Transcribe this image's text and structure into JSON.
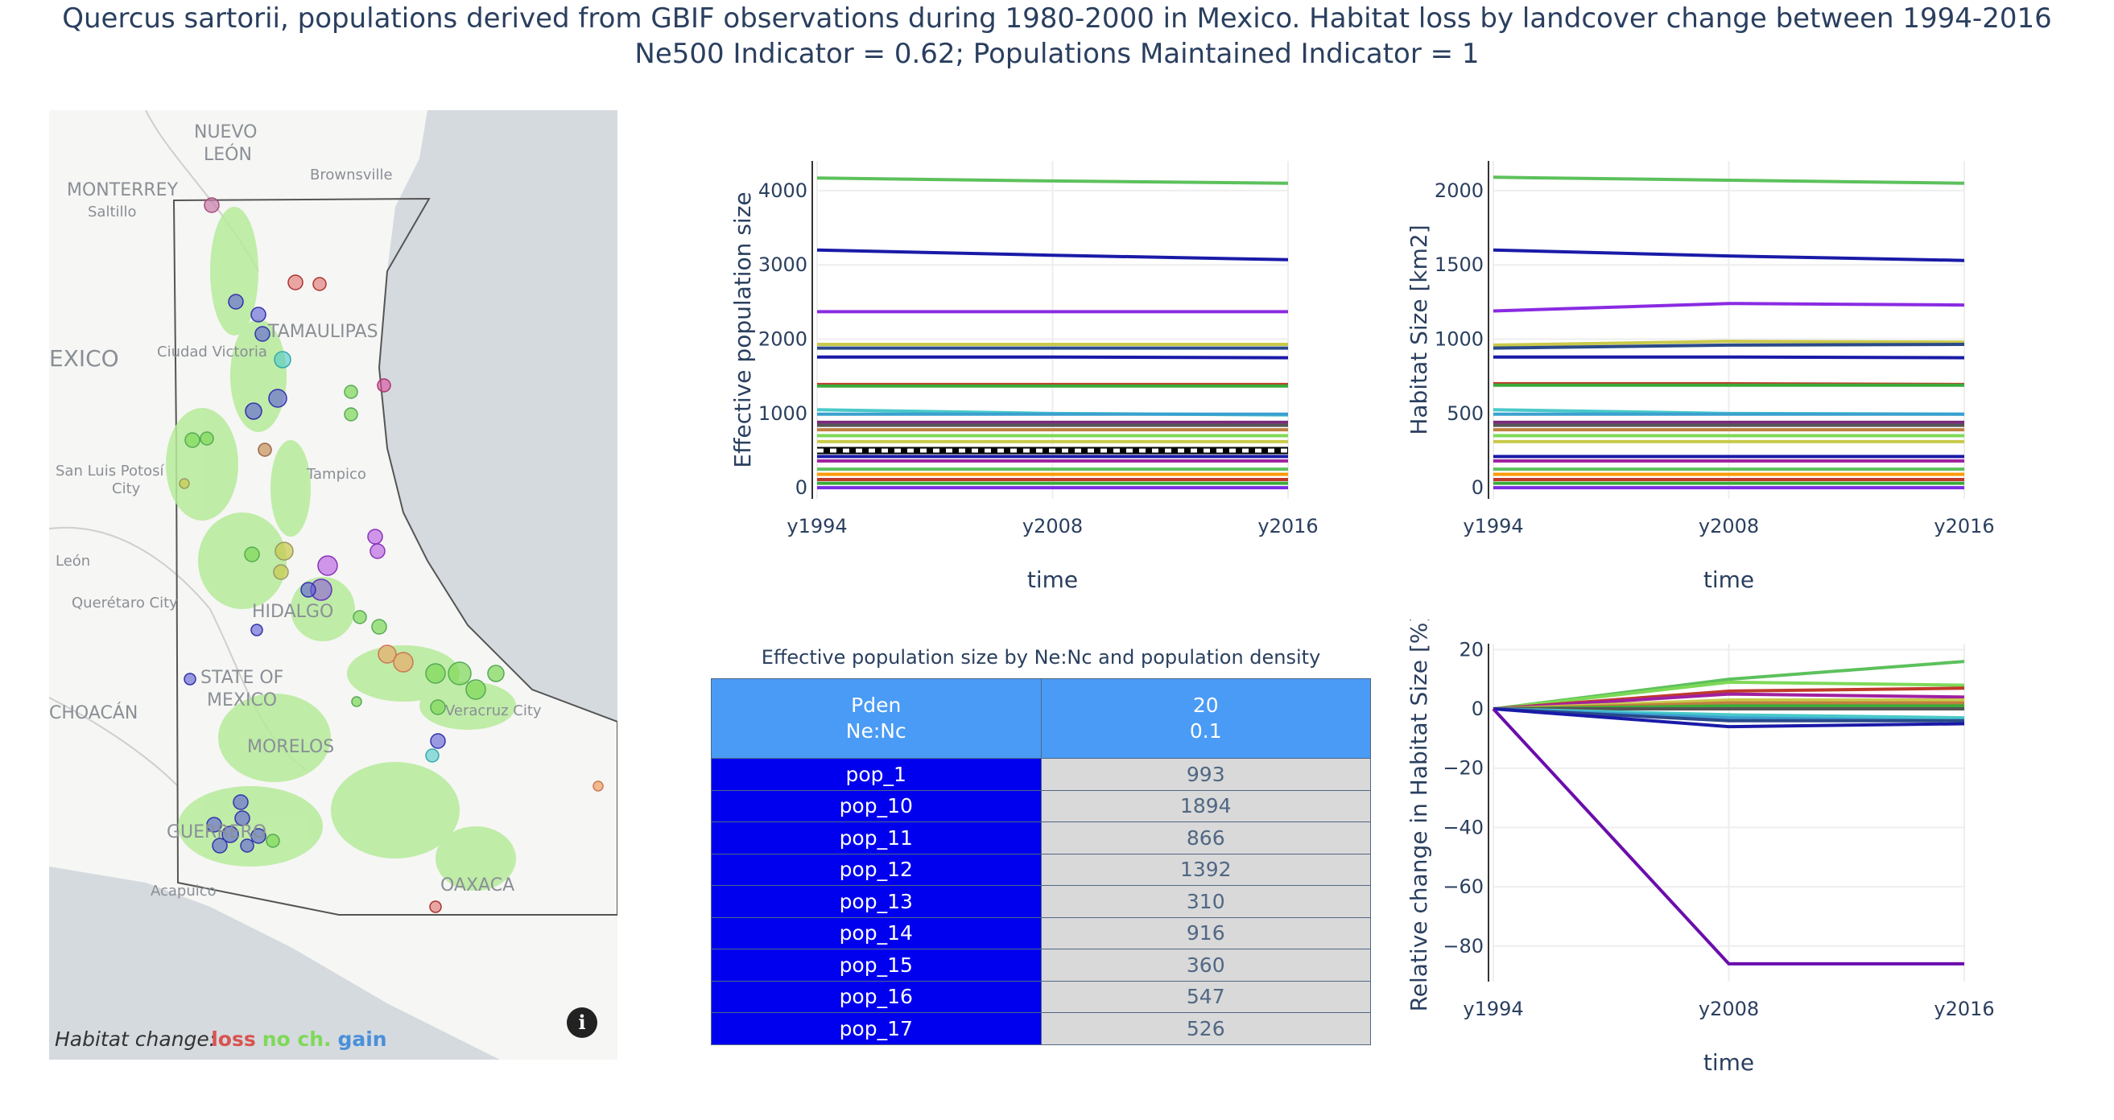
{
  "title": {
    "line1": "Quercus sartorii, populations derived from GBIF observations during 1980-2000 in Mexico. Habitat loss by landcover change between 1994-2016",
    "line2": "Ne500 Indicator = 0.62; Populations Maintained Indicator = 1"
  },
  "map": {
    "place_labels": [
      "NUEVO\nLEÓN",
      "Brownsville",
      "MONTERREY",
      "Saltillo",
      "TAMAULIPAS",
      "Ciudad Victoria",
      "MEXICO",
      "Tampico",
      "San Luis Potosí\nCity",
      "León",
      "Querétaro City",
      "HIDALGO",
      "STATE OF\nMEXICO",
      "MORELOS",
      "Veracruz City",
      "MICHOACÁN",
      "GUERRERO",
      "Acapulco",
      "OAXACA"
    ],
    "legend_title": "Habitat change:",
    "legend_loss": "loss",
    "legend_nochange": "no ch.",
    "legend_gain": "gain",
    "legend_colors": {
      "loss": "#d9534f",
      "nochange": "#7ed957",
      "gain": "#4a90d9"
    },
    "info_icon": "info-icon"
  },
  "table": {
    "title": "Effective population size by Ne:Nc and population density",
    "header_left": [
      "Pden",
      "Ne:Nc"
    ],
    "header_right": [
      "20",
      "0.1"
    ],
    "rows": [
      {
        "name": "pop_1",
        "value": "993"
      },
      {
        "name": "pop_10",
        "value": "1894"
      },
      {
        "name": "pop_11",
        "value": "866"
      },
      {
        "name": "pop_12",
        "value": "1392"
      },
      {
        "name": "pop_13",
        "value": "310"
      },
      {
        "name": "pop_14",
        "value": "916"
      },
      {
        "name": "pop_15",
        "value": "360"
      },
      {
        "name": "pop_16",
        "value": "547"
      },
      {
        "name": "pop_17",
        "value": "526"
      }
    ]
  },
  "chart_data": [
    {
      "id": "ne",
      "type": "line",
      "xlabel": "time",
      "ylabel": "Effective population size",
      "categories": [
        "y1994",
        "y2008",
        "y2016"
      ],
      "ylim": [
        -150,
        4400
      ],
      "yticks": [
        0,
        1000,
        2000,
        3000,
        4000
      ],
      "reference_line": {
        "y": 500,
        "style": "black-white dashed"
      },
      "series": [
        {
          "color": "#5cc15c",
          "values": [
            4170,
            4130,
            4100
          ]
        },
        {
          "color": "#1a1aa8",
          "values": [
            3200,
            3130,
            3070
          ]
        },
        {
          "color": "#8a2be2",
          "values": [
            2370,
            2370,
            2370
          ]
        },
        {
          "color": "#c9c94a",
          "values": [
            1930,
            1930,
            1930
          ]
        },
        {
          "color": "#2a4a8a",
          "values": [
            1880,
            1880,
            1880
          ]
        },
        {
          "color": "#1a1aa8",
          "values": [
            1760,
            1760,
            1750
          ]
        },
        {
          "color": "#c0392b",
          "values": [
            1390,
            1390,
            1390
          ]
        },
        {
          "color": "#3aaa3a",
          "values": [
            1370,
            1370,
            1370
          ]
        },
        {
          "color": "#48c9c9",
          "values": [
            1050,
            1000,
            980
          ]
        },
        {
          "color": "#3aa0d0",
          "values": [
            990,
            990,
            990
          ]
        },
        {
          "color": "#7a2b7a",
          "values": [
            880,
            880,
            880
          ]
        },
        {
          "color": "#555555",
          "values": [
            840,
            840,
            840
          ]
        },
        {
          "color": "#c08040",
          "values": [
            780,
            780,
            780
          ]
        },
        {
          "color": "#7ed957",
          "values": [
            700,
            700,
            700
          ]
        },
        {
          "color": "#c9c94a",
          "values": [
            620,
            620,
            620
          ]
        },
        {
          "color": "#1a1aa8",
          "values": [
            420,
            420,
            420
          ]
        },
        {
          "color": "#a020a0",
          "values": [
            360,
            360,
            360
          ]
        },
        {
          "color": "#5cc15c",
          "values": [
            250,
            250,
            250
          ]
        },
        {
          "color": "#ff9900",
          "values": [
            180,
            180,
            180
          ]
        },
        {
          "color": "#c0392b",
          "values": [
            110,
            110,
            110
          ]
        },
        {
          "color": "#3aaa3a",
          "values": [
            60,
            60,
            60
          ]
        },
        {
          "color": "#7a2be2",
          "values": [
            0,
            0,
            0
          ]
        }
      ]
    },
    {
      "id": "hs",
      "type": "line",
      "xlabel": "time",
      "ylabel": "Habitat Size [km2]",
      "categories": [
        "y1994",
        "y2008",
        "y2016"
      ],
      "ylim": [
        -75,
        2200
      ],
      "yticks": [
        0,
        500,
        1000,
        1500,
        2000
      ],
      "series": [
        {
          "color": "#5cc15c",
          "values": [
            2090,
            2070,
            2050
          ]
        },
        {
          "color": "#1a1aa8",
          "values": [
            1600,
            1560,
            1530
          ]
        },
        {
          "color": "#8a2be2",
          "values": [
            1190,
            1240,
            1230
          ]
        },
        {
          "color": "#c9c94a",
          "values": [
            960,
            985,
            980
          ]
        },
        {
          "color": "#2a4a8a",
          "values": [
            940,
            960,
            965
          ]
        },
        {
          "color": "#1a1aa8",
          "values": [
            880,
            880,
            875
          ]
        },
        {
          "color": "#c0392b",
          "values": [
            700,
            700,
            695
          ]
        },
        {
          "color": "#3aaa3a",
          "values": [
            690,
            690,
            690
          ]
        },
        {
          "color": "#48c9c9",
          "values": [
            525,
            500,
            495
          ]
        },
        {
          "color": "#3aa0d0",
          "values": [
            495,
            495,
            495
          ]
        },
        {
          "color": "#7a2b7a",
          "values": [
            440,
            440,
            440
          ]
        },
        {
          "color": "#555555",
          "values": [
            420,
            420,
            420
          ]
        },
        {
          "color": "#c08040",
          "values": [
            390,
            390,
            390
          ]
        },
        {
          "color": "#7ed957",
          "values": [
            350,
            350,
            350
          ]
        },
        {
          "color": "#c9c94a",
          "values": [
            310,
            310,
            310
          ]
        },
        {
          "color": "#1a1aa8",
          "values": [
            210,
            210,
            210
          ]
        },
        {
          "color": "#a020a0",
          "values": [
            180,
            180,
            180
          ]
        },
        {
          "color": "#5cc15c",
          "values": [
            125,
            125,
            125
          ]
        },
        {
          "color": "#ff9900",
          "values": [
            90,
            90,
            90
          ]
        },
        {
          "color": "#c0392b",
          "values": [
            55,
            55,
            55
          ]
        },
        {
          "color": "#3aaa3a",
          "values": [
            30,
            30,
            30
          ]
        },
        {
          "color": "#7a2be2",
          "values": [
            0,
            0,
            0
          ]
        }
      ]
    },
    {
      "id": "rel",
      "type": "line",
      "xlabel": "time",
      "ylabel": "Relative change in Habitat Size [%]",
      "categories": [
        "y1994",
        "y2008",
        "y2016"
      ],
      "ylim": [
        -92,
        22
      ],
      "yticks": [
        20,
        0,
        -20,
        -40,
        -60,
        -80
      ],
      "series": [
        {
          "color": "#5cc15c",
          "values": [
            0,
            10,
            16
          ]
        },
        {
          "color": "#7ed957",
          "values": [
            0,
            9,
            8
          ]
        },
        {
          "color": "#c0392b",
          "values": [
            0,
            6,
            7
          ]
        },
        {
          "color": "#a020a0",
          "values": [
            0,
            5,
            4
          ]
        },
        {
          "color": "#c9c94a",
          "values": [
            0,
            3,
            3
          ]
        },
        {
          "color": "#c08040",
          "values": [
            0,
            2,
            2
          ]
        },
        {
          "color": "#3aaa3a",
          "values": [
            0,
            1,
            1
          ]
        },
        {
          "color": "#555555",
          "values": [
            0,
            0,
            0
          ]
        },
        {
          "color": "#48c9c9",
          "values": [
            0,
            -2,
            -3
          ]
        },
        {
          "color": "#3aa0d0",
          "values": [
            0,
            -3,
            -4
          ]
        },
        {
          "color": "#2a4a8a",
          "values": [
            0,
            -4,
            -4
          ]
        },
        {
          "color": "#1a1aa8",
          "values": [
            0,
            -6,
            -5
          ]
        },
        {
          "color": "#6a0dad",
          "values": [
            0,
            -86,
            -86
          ]
        }
      ]
    }
  ]
}
